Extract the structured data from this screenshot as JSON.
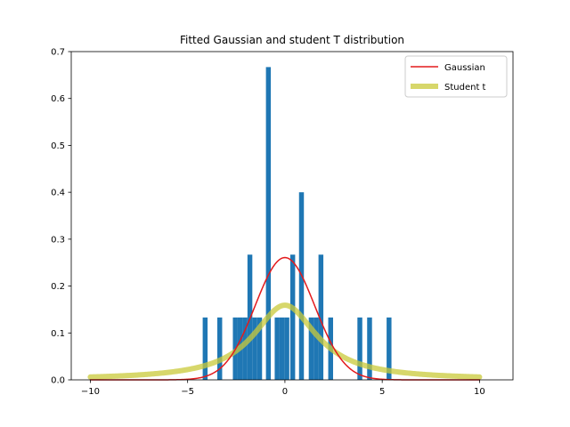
{
  "chart_data": {
    "type": "bar",
    "title": "Fitted Gaussian and student T distribution",
    "xlabel": "",
    "ylabel": "",
    "xlim": [
      -10.98,
      11.72
    ],
    "ylim": [
      0,
      0.7
    ],
    "x_ticks": [
      -10,
      -5,
      0,
      5,
      10
    ],
    "y_ticks": [
      0.0,
      0.1,
      0.2,
      0.3,
      0.4,
      0.5,
      0.6,
      0.7
    ],
    "grid": false,
    "legend_position": "top-right",
    "histogram": {
      "color": "#1f77b4",
      "bin_width": 0.25,
      "bins": [
        {
          "x": -4.1,
          "density": 0.133
        },
        {
          "x": -3.35,
          "density": 0.133
        },
        {
          "x": -2.55,
          "density": 0.133
        },
        {
          "x": -2.3,
          "density": 0.133
        },
        {
          "x": -2.05,
          "density": 0.133
        },
        {
          "x": -1.8,
          "density": 0.267
        },
        {
          "x": -1.55,
          "density": 0.133
        },
        {
          "x": -1.3,
          "density": 0.133
        },
        {
          "x": -0.85,
          "density": 0.667
        },
        {
          "x": -0.4,
          "density": 0.133
        },
        {
          "x": -0.15,
          "density": 0.133
        },
        {
          "x": 0.1,
          "density": 0.133
        },
        {
          "x": 0.4,
          "density": 0.267
        },
        {
          "x": 0.85,
          "density": 0.4
        },
        {
          "x": 1.35,
          "density": 0.133
        },
        {
          "x": 1.6,
          "density": 0.133
        },
        {
          "x": 1.85,
          "density": 0.267
        },
        {
          "x": 2.35,
          "density": 0.133
        },
        {
          "x": 3.85,
          "density": 0.133
        },
        {
          "x": 4.35,
          "density": 0.133
        },
        {
          "x": 5.35,
          "density": 0.133
        }
      ]
    },
    "series": [
      {
        "name": "Gaussian",
        "type": "line",
        "color": "#e31a1c",
        "line_width": 1.5,
        "mean": 0,
        "std": 1.53,
        "x_range": [
          -10,
          10
        ]
      },
      {
        "name": "Student t",
        "type": "line",
        "color": "#c9c93a",
        "line_width": 6,
        "opacity": 0.75,
        "loc": 0,
        "scale": 2.0,
        "df": 1,
        "x_range": [
          -10,
          10
        ]
      }
    ]
  }
}
